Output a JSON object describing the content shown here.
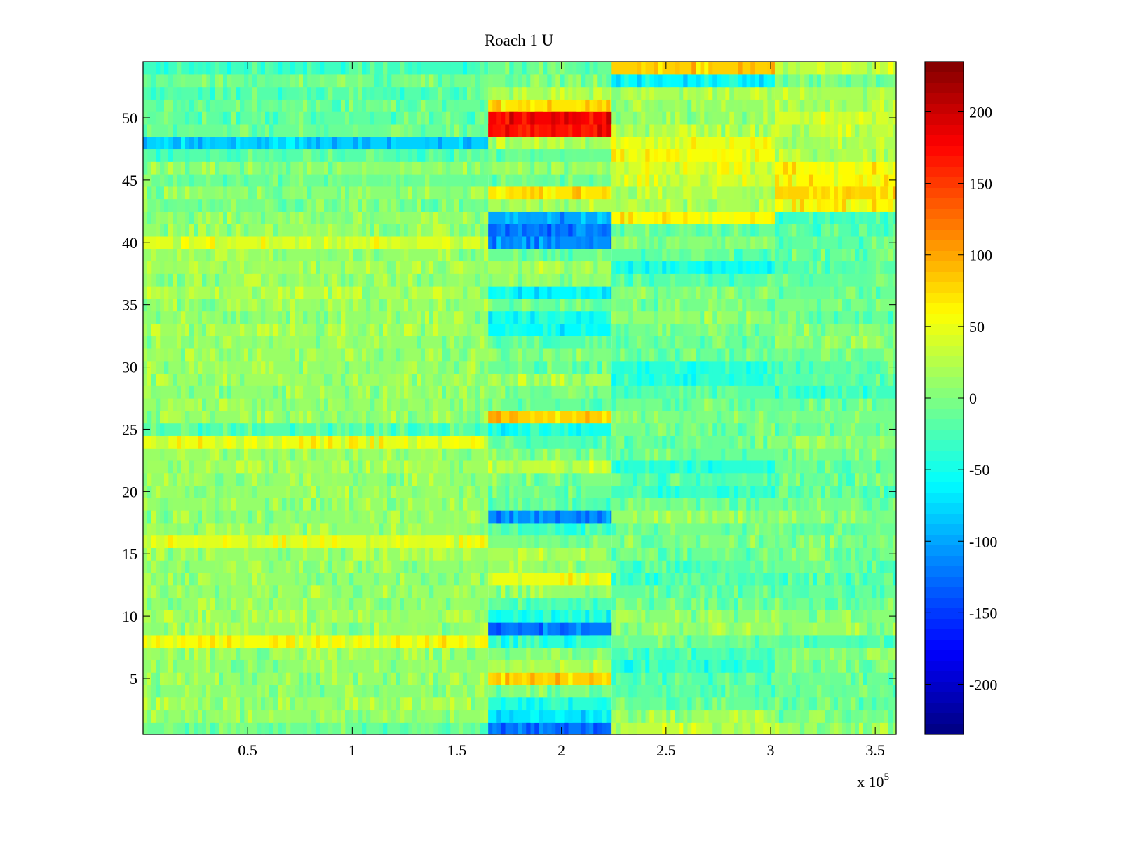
{
  "chart_data": {
    "type": "heatmap",
    "title": "Roach 1 U",
    "xlabel": "",
    "ylabel": "",
    "x_multiplier_label": {
      "base": "x 10",
      "exponent": "5"
    },
    "xlim": [
      0,
      3.6
    ],
    "ylim": [
      0.5,
      54.5
    ],
    "x_ticks": [
      0.5,
      1,
      1.5,
      2,
      2.5,
      3,
      3.5
    ],
    "x_tick_labels": [
      "0.5",
      "1",
      "1.5",
      "2",
      "2.5",
      "3",
      "3.5"
    ],
    "y_ticks": [
      5,
      10,
      15,
      20,
      25,
      30,
      35,
      40,
      45,
      50
    ],
    "y_tick_labels": [
      "5",
      "10",
      "15",
      "20",
      "25",
      "30",
      "35",
      "40",
      "45",
      "50"
    ],
    "rows": 54,
    "colormap": "jet",
    "colorbar": {
      "clim": [
        -235,
        235
      ],
      "ticks": [
        200,
        150,
        100,
        50,
        0,
        -50,
        -100,
        -150,
        -200
      ],
      "tick_labels": [
        "200",
        "150",
        "100",
        "50",
        "0",
        "-50",
        "-100",
        "-150",
        "-200"
      ]
    },
    "segments": [
      {
        "name": "segment-1",
        "x_range": [
          0,
          1.65
        ],
        "row_values": [
          -10,
          10,
          15,
          5,
          10,
          8,
          12,
          55,
          10,
          15,
          10,
          12,
          10,
          8,
          10,
          45,
          10,
          8,
          10,
          12,
          10,
          15,
          12,
          50,
          -20,
          10,
          12,
          8,
          15,
          10,
          12,
          10,
          15,
          10,
          12,
          20,
          10,
          15,
          10,
          45,
          10,
          8,
          -5,
          5,
          -10,
          5,
          -20,
          -80,
          -10,
          -15,
          -10,
          -20,
          -5,
          -30
        ]
      },
      {
        "name": "segment-2",
        "x_range": [
          1.65,
          2.24
        ],
        "row_values": [
          -120,
          -70,
          -40,
          0,
          80,
          20,
          0,
          -40,
          -120,
          -50,
          -20,
          10,
          50,
          10,
          20,
          0,
          -30,
          -110,
          -20,
          -10,
          0,
          30,
          0,
          -20,
          -50,
          80,
          -10,
          0,
          20,
          -10,
          0,
          -20,
          -60,
          -50,
          -10,
          -60,
          10,
          20,
          -10,
          -110,
          -120,
          -100,
          20,
          70,
          -10,
          10,
          -10,
          20,
          170,
          180,
          70,
          20,
          0,
          -10
        ]
      },
      {
        "name": "segment-3",
        "x_range": [
          2.24,
          3.02
        ],
        "row_values": [
          30,
          15,
          -10,
          -15,
          -20,
          -40,
          -25,
          -10,
          10,
          5,
          -10,
          -15,
          -30,
          -20,
          -10,
          0,
          -5,
          10,
          -5,
          -30,
          -20,
          -40,
          -10,
          -10,
          -5,
          0,
          -5,
          -20,
          -40,
          -40,
          -10,
          -10,
          -5,
          10,
          -5,
          0,
          -20,
          -50,
          -15,
          5,
          -10,
          60,
          20,
          20,
          40,
          40,
          55,
          50,
          20,
          10,
          10,
          20,
          -60,
          80
        ]
      },
      {
        "name": "segment-4",
        "x_range": [
          3.02,
          3.6
        ],
        "row_values": [
          15,
          -5,
          -10,
          -10,
          -10,
          -5,
          0,
          -20,
          10,
          5,
          -5,
          -10,
          -20,
          -10,
          -5,
          0,
          -10,
          0,
          -5,
          -20,
          -10,
          -10,
          -5,
          5,
          -10,
          -5,
          -10,
          -30,
          -20,
          -15,
          -10,
          10,
          5,
          -10,
          0,
          -10,
          -15,
          -20,
          -10,
          -15,
          -20,
          -30,
          60,
          80,
          60,
          60,
          20,
          20,
          30,
          40,
          20,
          20,
          0,
          30
        ]
      }
    ]
  }
}
